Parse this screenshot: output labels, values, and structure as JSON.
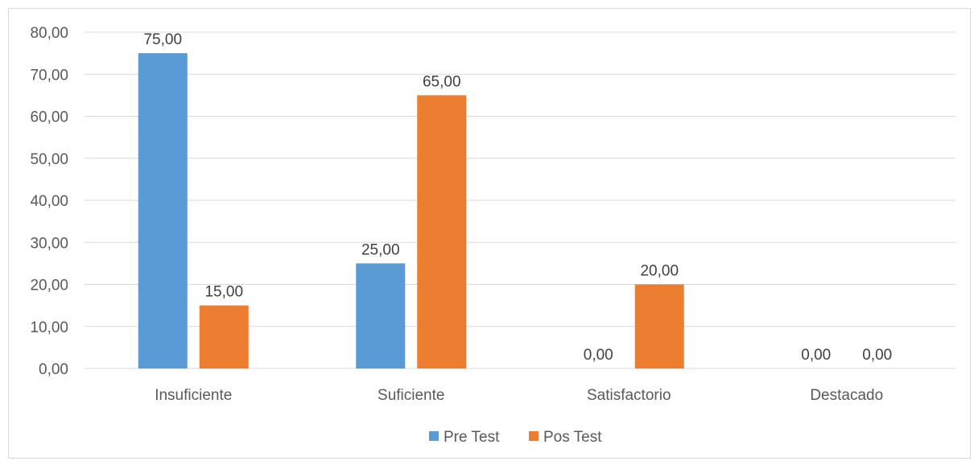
{
  "chart_data": {
    "type": "bar",
    "categories": [
      "Insuficiente",
      "Suficiente",
      "Satisfactorio",
      "Destacado"
    ],
    "series": [
      {
        "name": "Pre Test",
        "values": [
          75,
          25,
          0,
          0
        ],
        "labels": [
          "75,00",
          "25,00",
          "0,00",
          "0,00"
        ],
        "color": "#5b9bd5"
      },
      {
        "name": "Pos Test",
        "values": [
          15,
          65,
          20,
          0
        ],
        "labels": [
          "15,00",
          "65,00",
          "20,00",
          "0,00"
        ],
        "color": "#ed7d31"
      }
    ],
    "yticks": [
      0,
      10,
      20,
      30,
      40,
      50,
      60,
      70,
      80
    ],
    "ytick_labels": [
      "0,00",
      "10,00",
      "20,00",
      "30,00",
      "40,00",
      "50,00",
      "60,00",
      "70,00",
      "80,00"
    ],
    "ylim": [
      0,
      80
    ],
    "grid": true,
    "gridline_color": "#d9d9d9",
    "legend_position": "bottom"
  }
}
